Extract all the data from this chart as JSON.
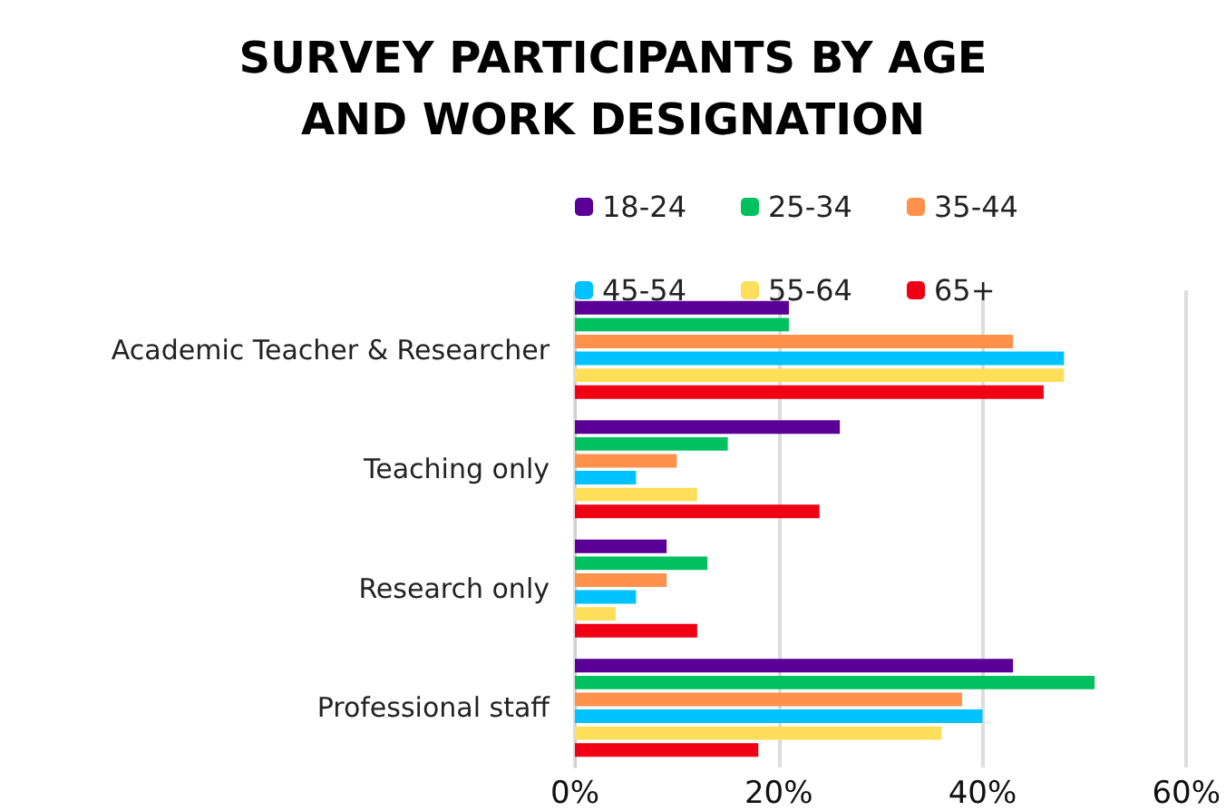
{
  "chart_data": {
    "type": "bar",
    "orientation": "horizontal",
    "title": "SURVEY PARTICIPANTS BY AGE\nAND WORK DESIGNATION",
    "categories": [
      "Academic Teacher & Researcher",
      "Teaching only",
      "Research only",
      "Professional staff"
    ],
    "series": [
      {
        "name": "18-24",
        "color": "#5b0096",
        "values": [
          21,
          26,
          9,
          43
        ]
      },
      {
        "name": "25-34",
        "color": "#00c060",
        "values": [
          21,
          15,
          13,
          51
        ]
      },
      {
        "name": "35-44",
        "color": "#ff914d",
        "values": [
          43,
          10,
          9,
          38
        ]
      },
      {
        "name": "45-54",
        "color": "#00c2ff",
        "values": [
          48,
          6,
          6,
          40
        ]
      },
      {
        "name": "55-64",
        "color": "#ffde59",
        "values": [
          48,
          12,
          4,
          36
        ]
      },
      {
        "name": "65+",
        "color": "#f00012",
        "values": [
          46,
          24,
          12,
          18
        ]
      }
    ],
    "xlim": [
      0,
      60
    ],
    "xticks": [
      {
        "value": 0,
        "label": "0%"
      },
      {
        "value": 20,
        "label": "20%"
      },
      {
        "value": 40,
        "label": "40%"
      },
      {
        "value": 60,
        "label": "60%"
      }
    ],
    "grid": "x",
    "legend": "top"
  }
}
